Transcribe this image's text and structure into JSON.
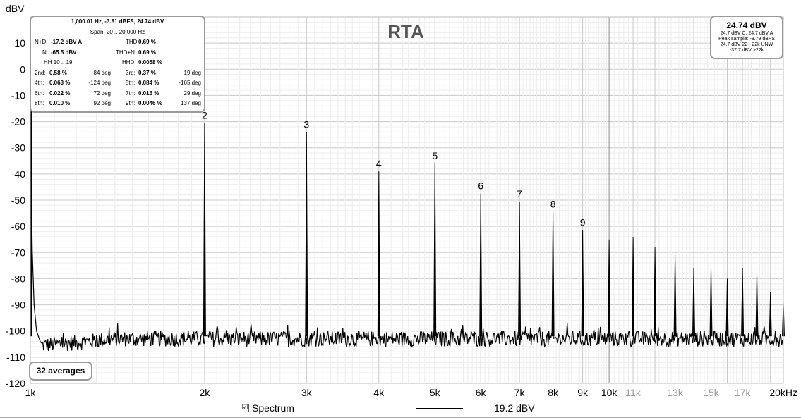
{
  "chart_data": {
    "type": "line",
    "title": "RTA",
    "ylabel": "dBV",
    "xlabel": "",
    "x_unit_label": "20kHz",
    "xscale": "log",
    "xlim": [
      1000,
      20000
    ],
    "ylim": [
      -120,
      20
    ],
    "grid": true,
    "y_ticks": [
      10,
      0,
      -10,
      -20,
      -30,
      -40,
      -50,
      -60,
      -70,
      -80,
      -90,
      -100,
      -110,
      -120
    ],
    "y_tick_labels": [
      "10",
      "0",
      "-10",
      "-20",
      "-30",
      "-40",
      "-50",
      "-60",
      "-70",
      "-80",
      "-90",
      "-100",
      "-110",
      "-120"
    ],
    "x_ticks": [
      {
        "value": 1000,
        "label": "1k",
        "major": true
      },
      {
        "value": 2000,
        "label": "2k",
        "major": true
      },
      {
        "value": 3000,
        "label": "3k",
        "major": true
      },
      {
        "value": 4000,
        "label": "4k",
        "major": true
      },
      {
        "value": 5000,
        "label": "5k",
        "major": true
      },
      {
        "value": 6000,
        "label": "6k",
        "major": true
      },
      {
        "value": 7000,
        "label": "7k",
        "major": true
      },
      {
        "value": 8000,
        "label": "8k",
        "major": true
      },
      {
        "value": 9000,
        "label": "9k",
        "major": true
      },
      {
        "value": 10000,
        "label": "10k",
        "major": true
      },
      {
        "value": 11000,
        "label": "11k",
        "major": false
      },
      {
        "value": 13000,
        "label": "13k",
        "major": false
      },
      {
        "value": 15000,
        "label": "15k",
        "major": false
      },
      {
        "value": 17000,
        "label": "17k",
        "major": false
      }
    ],
    "noise_floor": -103,
    "series": [
      {
        "name": "Spectrum",
        "color": "#000000",
        "peaks": [
          {
            "x": 1000,
            "y": 24.74,
            "label": ""
          },
          {
            "x": 2000,
            "y": -20.5,
            "label": "2"
          },
          {
            "x": 3000,
            "y": -24,
            "label": "3"
          },
          {
            "x": 4000,
            "y": -39,
            "label": "4"
          },
          {
            "x": 5000,
            "y": -36,
            "label": "5"
          },
          {
            "x": 6000,
            "y": -47.5,
            "label": "6"
          },
          {
            "x": 7000,
            "y": -50.5,
            "label": "7"
          },
          {
            "x": 8000,
            "y": -54.5,
            "label": "8"
          },
          {
            "x": 9000,
            "y": -61.5,
            "label": "9"
          },
          {
            "x": 10000,
            "y": -65,
            "label": ""
          },
          {
            "x": 11000,
            "y": -64,
            "label": ""
          },
          {
            "x": 12000,
            "y": -68,
            "label": ""
          },
          {
            "x": 13000,
            "y": -71,
            "label": ""
          },
          {
            "x": 14000,
            "y": -76,
            "label": ""
          },
          {
            "x": 15000,
            "y": -76,
            "label": ""
          },
          {
            "x": 16000,
            "y": -80,
            "label": ""
          },
          {
            "x": 17000,
            "y": -76,
            "label": ""
          },
          {
            "x": 18000,
            "y": -78,
            "label": ""
          },
          {
            "x": 19000,
            "y": -85,
            "label": ""
          },
          {
            "x": 20000,
            "y": -89,
            "label": ""
          }
        ]
      }
    ]
  },
  "stats": {
    "header": "1,000.01 Hz, -3.81 dBFS, 24.74 dBV",
    "span": "Span: 20 .. 20,000 Hz",
    "nd_label": "N+D:",
    "nd_value": "-17.2 dBV A",
    "thd_label": "THD:",
    "thd_value": "0.69 %",
    "n_label": "N:",
    "n_value": "-65.5 dBV",
    "thdn_label": "THD+N:",
    "thdn_value": "0.69 %",
    "hh_label": "HH 10 .. 19",
    "hhd_label": "HHD:",
    "hhd_value": "0.0058 %",
    "harmonics": [
      {
        "l1": "2nd:",
        "v1": "0.58 %",
        "d1": "84 deg",
        "l2": "3rd:",
        "v2": "0.37 %",
        "d2": "19 deg"
      },
      {
        "l1": "4th:",
        "v1": "0.063 %",
        "d1": "-124 deg",
        "l2": "5th:",
        "v2": "0.084 %",
        "d2": "-165 deg"
      },
      {
        "l1": "6th:",
        "v1": "0.022 %",
        "d1": "72 deg",
        "l2": "7th:",
        "v2": "0.016 %",
        "d2": "29 deg"
      },
      {
        "l1": "8th:",
        "v1": "0.010 %",
        "d1": "92 deg",
        "l2": "9th:",
        "v2": "0.0046 %",
        "d2": "137 deg"
      }
    ]
  },
  "level": {
    "main": "24.74 dBV",
    "line1": "24.7 dBV C, 24.7 dBV A",
    "line2": "Peak sample: -3.79 dBFS",
    "line3": "24.7 dBV 22 - 22k UNW",
    "line4": "-37.7 dBV >22k"
  },
  "averages": "32 averages",
  "legend": {
    "checkbox": "☑",
    "name": "Spectrum",
    "value": "19.2 dBV"
  }
}
